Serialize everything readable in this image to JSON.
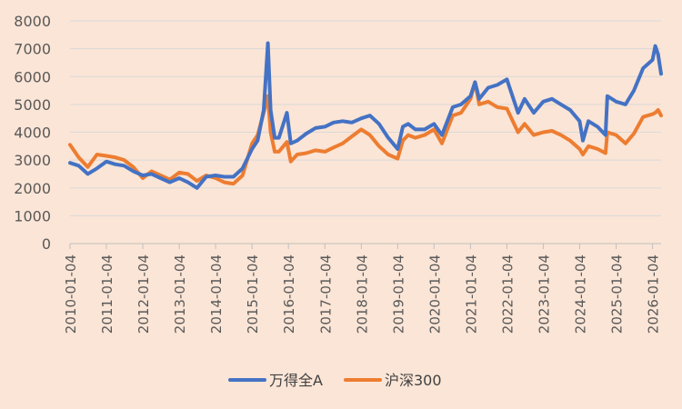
{
  "chart_data": {
    "type": "line",
    "title": "",
    "xlabel": "",
    "ylabel": "",
    "ylim": [
      0,
      8000
    ],
    "yticks": [
      0,
      1000,
      2000,
      3000,
      4000,
      5000,
      6000,
      7000,
      8000
    ],
    "grid": "horizontal",
    "legend_position": "bottom",
    "x_ticks": [
      "2010-01-04",
      "2011-01-04",
      "2012-01-04",
      "2013-01-04",
      "2014-01-04",
      "2015-01-04",
      "2016-01-04",
      "2017-01-04",
      "2018-01-04",
      "2019-01-04",
      "2020-01-04",
      "2021-01-04",
      "2022-01-04",
      "2023-01-04",
      "2024-01-04",
      "2025-01-04",
      "2026-01-04"
    ],
    "x": [
      "2010-01-04",
      "2010-04-01",
      "2010-07-01",
      "2010-10-01",
      "2011-01-04",
      "2011-04-01",
      "2011-07-01",
      "2011-10-01",
      "2012-01-04",
      "2012-04-01",
      "2012-07-01",
      "2012-10-01",
      "2013-01-04",
      "2013-04-01",
      "2013-07-01",
      "2013-10-01",
      "2014-01-04",
      "2014-04-01",
      "2014-07-01",
      "2014-10-01",
      "2015-01-04",
      "2015-03-01",
      "2015-05-01",
      "2015-06-12",
      "2015-07-10",
      "2015-08-20",
      "2015-10-01",
      "2015-12-20",
      "2016-01-28",
      "2016-04-01",
      "2016-07-01",
      "2016-10-01",
      "2017-01-04",
      "2017-04-01",
      "2017-07-01",
      "2017-10-01",
      "2018-01-04",
      "2018-04-01",
      "2018-07-01",
      "2018-10-01",
      "2019-01-04",
      "2019-02-25",
      "2019-04-20",
      "2019-07-01",
      "2019-10-01",
      "2020-01-04",
      "2020-03-23",
      "2020-07-10",
      "2020-10-01",
      "2021-01-04",
      "2021-02-18",
      "2021-04-01",
      "2021-07-01",
      "2021-10-01",
      "2022-01-04",
      "2022-04-26",
      "2022-07-01",
      "2022-10-01",
      "2023-01-04",
      "2023-04-01",
      "2023-07-01",
      "2023-10-01",
      "2024-01-04",
      "2024-02-05",
      "2024-04-01",
      "2024-07-01",
      "2024-09-20",
      "2024-10-08",
      "2025-01-04",
      "2025-04-08",
      "2025-07-01",
      "2025-10-01",
      "2026-01-04",
      "2026-02-01",
      "2026-03-01",
      "2026-03-31"
    ],
    "series": [
      {
        "name": "万得全A",
        "color": "#4472c4",
        "values": [
          2900,
          2800,
          2500,
          2700,
          2950,
          2850,
          2800,
          2600,
          2450,
          2500,
          2350,
          2200,
          2350,
          2200,
          2000,
          2400,
          2450,
          2400,
          2400,
          2700,
          3400,
          3700,
          4800,
          7200,
          4800,
          3800,
          3800,
          4700,
          3600,
          3700,
          3950,
          4150,
          4200,
          4350,
          4400,
          4350,
          4500,
          4600,
          4300,
          3800,
          3400,
          4200,
          4300,
          4100,
          4100,
          4300,
          3900,
          4900,
          5000,
          5300,
          5800,
          5200,
          5600,
          5700,
          5900,
          4700,
          5200,
          4700,
          5100,
          5200,
          5000,
          4800,
          4400,
          3700,
          4400,
          4200,
          3900,
          5300,
          5100,
          5000,
          5500,
          6300,
          6600,
          7100,
          6800,
          6100
        ]
      },
      {
        "name": "沪深300",
        "color": "#ed7d31",
        "values": [
          3550,
          3100,
          2750,
          3200,
          3150,
          3100,
          3000,
          2750,
          2350,
          2600,
          2450,
          2300,
          2550,
          2500,
          2250,
          2450,
          2350,
          2200,
          2150,
          2450,
          3600,
          3900,
          4700,
          5300,
          4000,
          3300,
          3300,
          3650,
          2950,
          3200,
          3250,
          3350,
          3300,
          3450,
          3600,
          3850,
          4100,
          3900,
          3500,
          3200,
          3050,
          3700,
          3900,
          3800,
          3900,
          4100,
          3600,
          4600,
          4700,
          5200,
          5800,
          5000,
          5100,
          4900,
          4850,
          4000,
          4300,
          3900,
          4000,
          4050,
          3900,
          3700,
          3400,
          3200,
          3500,
          3400,
          3250,
          4000,
          3900,
          3600,
          3950,
          4550,
          4650,
          4700,
          4800,
          4600
        ]
      }
    ]
  }
}
